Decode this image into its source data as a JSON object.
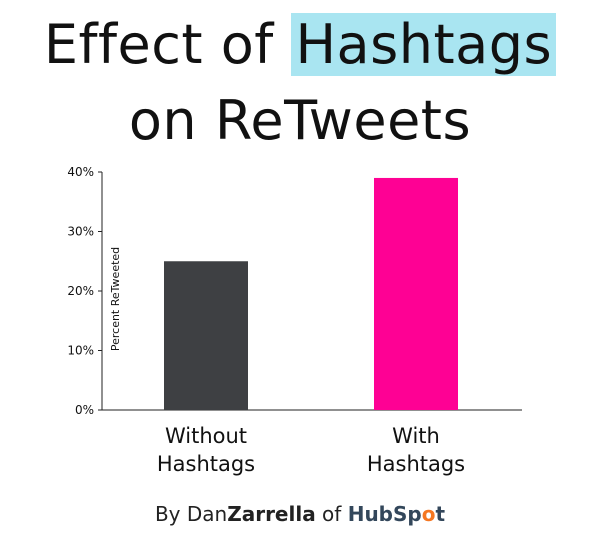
{
  "title": {
    "part1": "Effect of ",
    "highlight": "Hashtags",
    "line2": "on ReTweets"
  },
  "credit": {
    "prefix": "By Dan",
    "name": "Zarrella",
    "mid": " of ",
    "brand_a": "HubSp",
    "brand_o": "o",
    "brand_b": "t"
  },
  "colors": {
    "highlight": "#a9e5f1",
    "without": "#3e4043",
    "with": "#fe0194"
  },
  "chart_data": {
    "type": "bar",
    "categories": [
      [
        "Without",
        "Hashtags"
      ],
      [
        "With",
        "Hashtags"
      ]
    ],
    "values": [
      25,
      39
    ],
    "bar_colors": [
      "#3e4043",
      "#fe0194"
    ],
    "ylabel": "Percent ReTweeted",
    "xlabel": "",
    "ylim": [
      0,
      40
    ],
    "yticks": [
      0,
      10,
      20,
      30,
      40
    ],
    "ytick_labels": [
      "0%",
      "10%",
      "20%",
      "30%",
      "40%"
    ],
    "grid": false,
    "legend": "none"
  }
}
